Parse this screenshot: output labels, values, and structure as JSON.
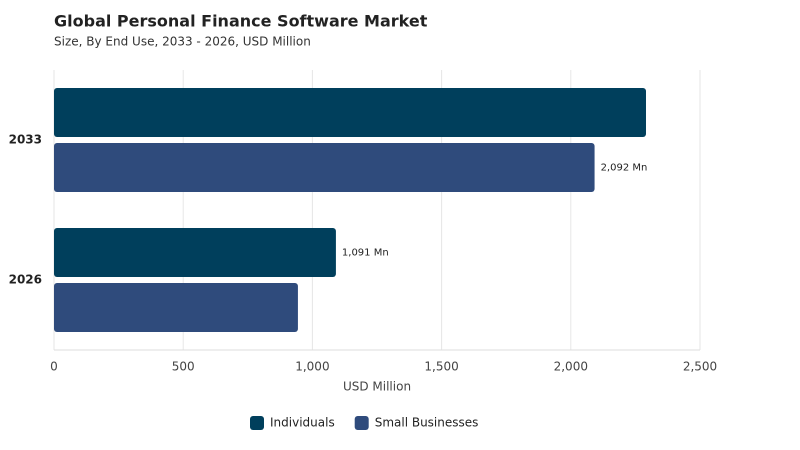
{
  "chart_data": {
    "type": "bar",
    "orientation": "horizontal",
    "title": "Global Personal Finance Software Market",
    "subtitle": "Size, By End Use, 2033 - 2026, USD Million",
    "x_label": "USD Million",
    "categories": [
      "2033",
      "2026"
    ],
    "series": [
      {
        "name": "Individuals",
        "color": "#003f5c",
        "values": [
          2291,
          1091
        ],
        "value_labels": [
          null,
          "1,091 Mn"
        ]
      },
      {
        "name": "Small Businesses",
        "color": "#2f4b7c",
        "values": [
          2092,
          944
        ],
        "value_labels": [
          "2,092 Mn",
          null
        ]
      }
    ],
    "xlim": [
      0,
      2500
    ],
    "xticks": [
      0,
      500,
      {
        "value": 1000,
        "label": "1,000"
      },
      {
        "value": 1500,
        "label": "1,500"
      },
      {
        "value": 2000,
        "label": "2,000"
      },
      {
        "value": 2500,
        "label": "2,500"
      }
    ],
    "grid": true
  }
}
